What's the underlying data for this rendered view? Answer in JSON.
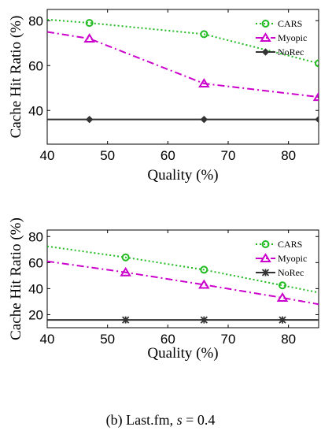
{
  "caption": {
    "prefix": "(b) Last.fm, ",
    "var": "s",
    "suffix": " = 0.4"
  },
  "chart_data": [
    {
      "type": "line",
      "xlabel": "Quality (%)",
      "ylabel": "Cache Hit Ratio (%)",
      "xlim": [
        40,
        85
      ],
      "ylim": [
        25,
        85
      ],
      "xticks": [
        40,
        50,
        60,
        70,
        80
      ],
      "yticks": [
        40,
        60,
        80
      ],
      "grid": false,
      "legend_position": "top-right",
      "series": [
        {
          "name": "CARS",
          "color": "#22bb22",
          "dash": "dotted",
          "marker": "circle",
          "x": [
            40,
            47,
            66,
            85
          ],
          "y": [
            80.5,
            79,
            74,
            61
          ],
          "marker_x": [
            47,
            66,
            85
          ]
        },
        {
          "name": "Myopic",
          "color": "#cc00cc",
          "dash": "dashdot",
          "marker": "triangle",
          "x": [
            40,
            47,
            66,
            85
          ],
          "y": [
            75,
            72,
            52,
            46
          ],
          "marker_x": [
            47,
            66,
            85
          ]
        },
        {
          "name": "NoRec",
          "color": "#333333",
          "dash": "solid",
          "marker": "diamond",
          "x": [
            40,
            47,
            66,
            85
          ],
          "y": [
            36,
            36,
            36,
            36
          ],
          "marker_x": [
            47,
            66,
            85
          ]
        }
      ]
    },
    {
      "type": "line",
      "xlabel": "Quality (%)",
      "ylabel": "Cache Hit Ratio (%)",
      "xlim": [
        40,
        85
      ],
      "ylim": [
        10,
        85
      ],
      "xticks": [
        40,
        50,
        60,
        70,
        80
      ],
      "yticks": [
        20,
        40,
        60,
        80
      ],
      "grid": false,
      "legend_position": "top-right",
      "series": [
        {
          "name": "CARS",
          "color": "#22bb22",
          "dash": "dotted",
          "marker": "circle",
          "x": [
            40,
            53,
            66,
            79,
            85
          ],
          "y": [
            72.5,
            64,
            54.5,
            42.5,
            37
          ],
          "marker_x": [
            53,
            66,
            79
          ]
        },
        {
          "name": "Myopic",
          "color": "#cc00cc",
          "dash": "dashdot",
          "marker": "triangle",
          "x": [
            40,
            53,
            66,
            79,
            85
          ],
          "y": [
            61,
            52.5,
            43,
            33,
            28
          ],
          "marker_x": [
            53,
            66,
            79
          ]
        },
        {
          "name": "NoRec",
          "color": "#333333",
          "dash": "solid",
          "marker": "star",
          "x": [
            40,
            53,
            66,
            79,
            85
          ],
          "y": [
            16,
            16,
            16,
            16,
            16
          ],
          "marker_x": [
            53,
            66,
            79
          ]
        }
      ]
    }
  ]
}
